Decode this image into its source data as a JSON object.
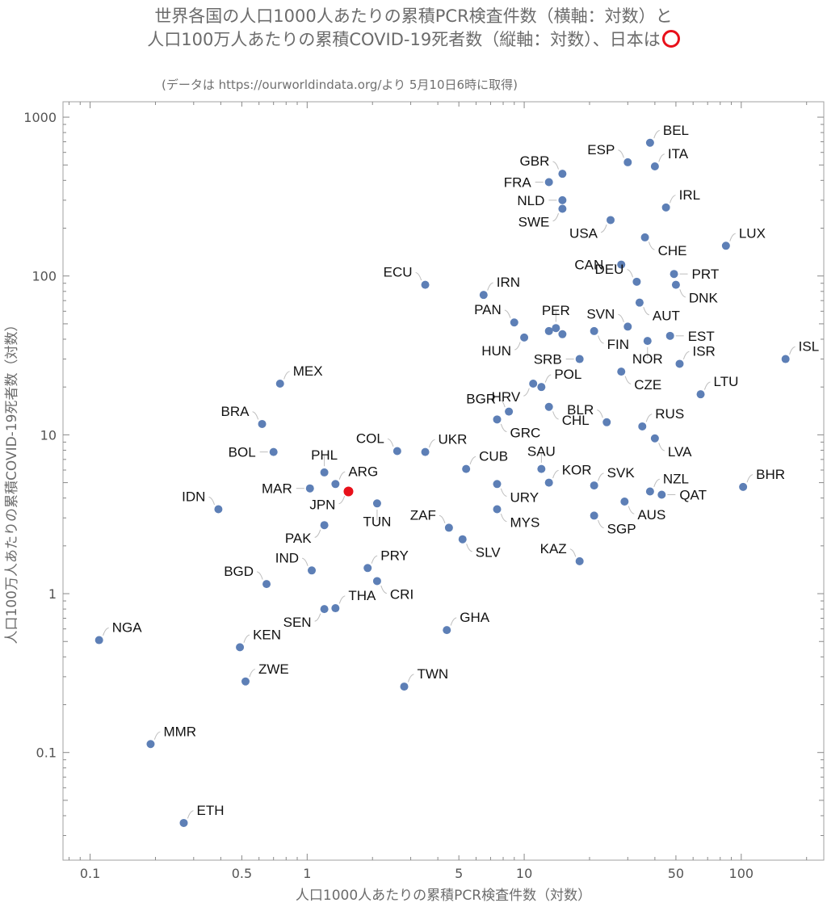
{
  "chart_data": {
    "type": "scatter",
    "title": "世界各国の人口1000人あたりの累積PCR検査件数（横軸：対数）と",
    "title2": "人口100万人あたりの累積COVID-19死者数（縦軸：対数）、日本は",
    "subtitle": "(データは https://ourworldindata.org/より 5月10日6時に取得)",
    "xlabel": "人口1000人あたりの累積PCR検査件数（対数）",
    "ylabel": "人口100万人あたりの累積COVID-19死者数（対数）",
    "xscale": "log",
    "yscale": "log",
    "xlim": [
      0.075,
      240
    ],
    "ylim": [
      0.021,
      1250
    ],
    "xticks": [
      0.1,
      0.5,
      1,
      5,
      10,
      50,
      100
    ],
    "yticks": [
      0.1,
      1,
      10,
      100,
      1000
    ],
    "grid": false,
    "point_color": "#5d7fb6",
    "highlight_color": "#e8101a",
    "highlight": "JPN",
    "points": [
      {
        "label": "BEL",
        "x": 38,
        "y": 690
      },
      {
        "label": "ESP",
        "x": 30,
        "y": 520
      },
      {
        "label": "ITA",
        "x": 40,
        "y": 490
      },
      {
        "label": "GBR",
        "x": 15,
        "y": 440
      },
      {
        "label": "FRA",
        "x": 13,
        "y": 390
      },
      {
        "label": "NLD",
        "x": 15,
        "y": 300
      },
      {
        "label": "IRL",
        "x": 45,
        "y": 270
      },
      {
        "label": "SWE",
        "x": 15,
        "y": 265
      },
      {
        "label": "USA",
        "x": 25,
        "y": 225
      },
      {
        "label": "CHE",
        "x": 36,
        "y": 175
      },
      {
        "label": "LUX",
        "x": 85,
        "y": 155
      },
      {
        "label": "CAN",
        "x": 28,
        "y": 118
      },
      {
        "label": "PRT",
        "x": 49,
        "y": 103
      },
      {
        "label": "DEU",
        "x": 33,
        "y": 92
      },
      {
        "label": "ECU",
        "x": 3.5,
        "y": 88
      },
      {
        "label": "DNK",
        "x": 50,
        "y": 88
      },
      {
        "label": "IRN",
        "x": 6.5,
        "y": 76
      },
      {
        "label": "AUT",
        "x": 34,
        "y": 68
      },
      {
        "label": "PAN",
        "x": 9,
        "y": 51
      },
      {
        "label": "PER",
        "x": 14,
        "y": 47
      },
      {
        "label": "",
        "x": 13,
        "y": 45
      },
      {
        "label": "SVN",
        "x": 30,
        "y": 48
      },
      {
        "label": "",
        "x": 15,
        "y": 43
      },
      {
        "label": "HUN",
        "x": 10,
        "y": 41
      },
      {
        "label": "FIN",
        "x": 21,
        "y": 45
      },
      {
        "label": "EST",
        "x": 47,
        "y": 42
      },
      {
        "label": "NOR",
        "x": 37,
        "y": 39
      },
      {
        "label": "ISL",
        "x": 160,
        "y": 30
      },
      {
        "label": "SRB",
        "x": 18,
        "y": 30
      },
      {
        "label": "ISR",
        "x": 52,
        "y": 28
      },
      {
        "label": "CZE",
        "x": 28,
        "y": 25
      },
      {
        "label": "MEX",
        "x": 0.75,
        "y": 21
      },
      {
        "label": "HRV",
        "x": 11,
        "y": 21
      },
      {
        "label": "POL",
        "x": 12,
        "y": 20
      },
      {
        "label": "LTU",
        "x": 65,
        "y": 18
      },
      {
        "label": "CHL",
        "x": 13,
        "y": 15
      },
      {
        "label": "BGR",
        "x": 8.5,
        "y": 14
      },
      {
        "label": "GRC",
        "x": 7.5,
        "y": 12.5
      },
      {
        "label": "BLR",
        "x": 24,
        "y": 12
      },
      {
        "label": "BRA",
        "x": 0.62,
        "y": 11.7
      },
      {
        "label": "RUS",
        "x": 35,
        "y": 11.3
      },
      {
        "label": "LVA",
        "x": 40,
        "y": 9.5
      },
      {
        "label": "COL",
        "x": 2.6,
        "y": 7.9
      },
      {
        "label": "UKR",
        "x": 3.5,
        "y": 7.8
      },
      {
        "label": "BOL",
        "x": 0.7,
        "y": 7.8
      },
      {
        "label": "SAU",
        "x": 12,
        "y": 6.1
      },
      {
        "label": "CUB",
        "x": 5.4,
        "y": 6.1
      },
      {
        "label": "PHL",
        "x": 1.2,
        "y": 5.8
      },
      {
        "label": "KOR",
        "x": 13,
        "y": 5
      },
      {
        "label": "SVK",
        "x": 21,
        "y": 4.8
      },
      {
        "label": "URY",
        "x": 7.5,
        "y": 4.9
      },
      {
        "label": "BHR",
        "x": 102,
        "y": 4.7
      },
      {
        "label": "ARG",
        "x": 1.35,
        "y": 4.9
      },
      {
        "label": "MAR",
        "x": 1.03,
        "y": 4.6
      },
      {
        "label": "NZL",
        "x": 38,
        "y": 4.4
      },
      {
        "label": "QAT",
        "x": 43,
        "y": 4.2
      },
      {
        "label": "JPN",
        "x": 1.55,
        "y": 4.4
      },
      {
        "label": "AUS",
        "x": 29,
        "y": 3.8
      },
      {
        "label": "TUN",
        "x": 2.1,
        "y": 3.7
      },
      {
        "label": "IDN",
        "x": 0.39,
        "y": 3.4
      },
      {
        "label": "MYS",
        "x": 7.5,
        "y": 3.4
      },
      {
        "label": "SGP",
        "x": 21,
        "y": 3.1
      },
      {
        "label": "PAK",
        "x": 1.2,
        "y": 2.7
      },
      {
        "label": "ZAF",
        "x": 4.5,
        "y": 2.6
      },
      {
        "label": "SLV",
        "x": 5.2,
        "y": 2.2
      },
      {
        "label": "KAZ",
        "x": 18,
        "y": 1.6
      },
      {
        "label": "PRY",
        "x": 1.9,
        "y": 1.45
      },
      {
        "label": "IND",
        "x": 1.05,
        "y": 1.4
      },
      {
        "label": "CRI",
        "x": 2.1,
        "y": 1.2
      },
      {
        "label": "BGD",
        "x": 0.65,
        "y": 1.15
      },
      {
        "label": "THA",
        "x": 1.35,
        "y": 0.81
      },
      {
        "label": "SEN",
        "x": 1.2,
        "y": 0.8
      },
      {
        "label": "GHA",
        "x": 4.4,
        "y": 0.59
      },
      {
        "label": "NGA",
        "x": 0.11,
        "y": 0.51
      },
      {
        "label": "KEN",
        "x": 0.49,
        "y": 0.46
      },
      {
        "label": "ZWE",
        "x": 0.52,
        "y": 0.28
      },
      {
        "label": "TWN",
        "x": 2.8,
        "y": 0.26
      },
      {
        "label": "MMR",
        "x": 0.19,
        "y": 0.113
      },
      {
        "label": "ETH",
        "x": 0.27,
        "y": 0.036
      }
    ]
  }
}
